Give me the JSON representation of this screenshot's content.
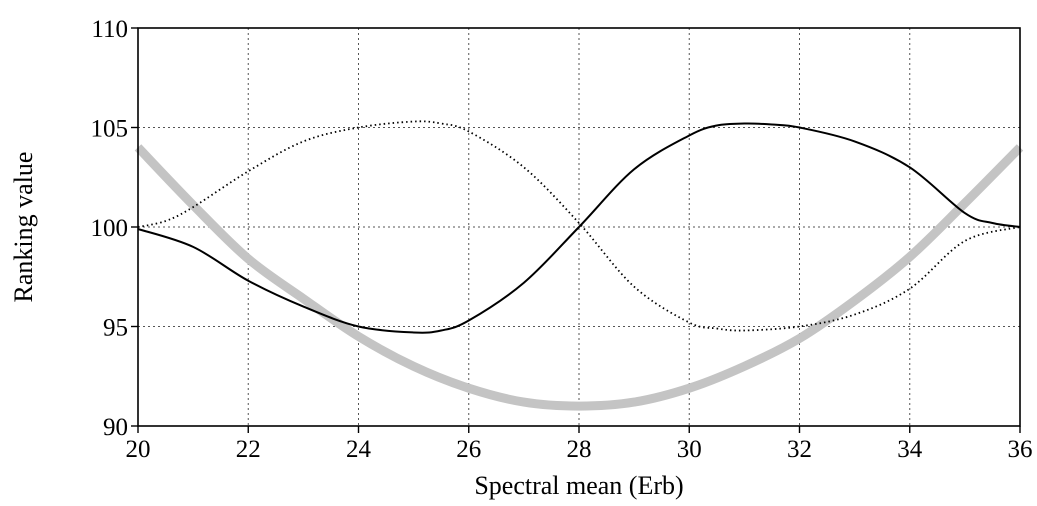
{
  "chart_data": {
    "type": "line",
    "title": "",
    "xlabel": "Spectral mean (Erb)",
    "ylabel": "Ranking value",
    "xlim": [
      20,
      36
    ],
    "ylim": [
      90,
      110
    ],
    "xticks": [
      20,
      22,
      24,
      26,
      28,
      30,
      32,
      34,
      36
    ],
    "yticks": [
      90,
      95,
      100,
      105,
      110
    ],
    "xtick_labels": [
      "20",
      "22",
      "24",
      "26",
      "28",
      "30",
      "32",
      "34",
      "36"
    ],
    "ytick_labels": [
      "90",
      "95",
      "100",
      "105",
      "110"
    ],
    "grid": true,
    "legend": false,
    "series": [
      {
        "style": "solid",
        "color": "#000000",
        "x": [
          20,
          21,
          22,
          23,
          24,
          25,
          25.5,
          26,
          27,
          28,
          29,
          30,
          30.5,
          31,
          31.5,
          32,
          33,
          34,
          35,
          35.5,
          36
        ],
        "y": [
          99.9,
          99.0,
          97.3,
          96.0,
          95.0,
          94.7,
          94.8,
          95.3,
          97.2,
          100.0,
          102.9,
          104.6,
          105.1,
          105.2,
          105.15,
          105.0,
          104.3,
          103.0,
          100.7,
          100.2,
          100.0
        ]
      },
      {
        "style": "dotted",
        "color": "#000000",
        "x": [
          20,
          20.5,
          21,
          22,
          23,
          24,
          25,
          25.5,
          26,
          27,
          28,
          29,
          30,
          30.5,
          31,
          32,
          33,
          34,
          35,
          36
        ],
        "y": [
          100.0,
          100.3,
          101.0,
          102.8,
          104.3,
          105.0,
          105.3,
          105.2,
          104.8,
          103.0,
          100.2,
          97.0,
          95.2,
          94.9,
          94.8,
          95.0,
          95.6,
          96.9,
          99.3,
          100.0
        ]
      },
      {
        "style": "thick",
        "color": "#c4c4c4",
        "x": [
          20,
          21,
          22,
          23,
          24,
          25,
          26,
          27,
          28,
          29,
          30,
          31,
          32,
          33,
          34,
          35,
          36
        ],
        "y": [
          104.0,
          101.1,
          98.4,
          96.4,
          94.5,
          93.0,
          91.9,
          91.2,
          91.0,
          91.2,
          91.9,
          93.0,
          94.4,
          96.3,
          98.5,
          101.2,
          104.0
        ]
      }
    ]
  }
}
